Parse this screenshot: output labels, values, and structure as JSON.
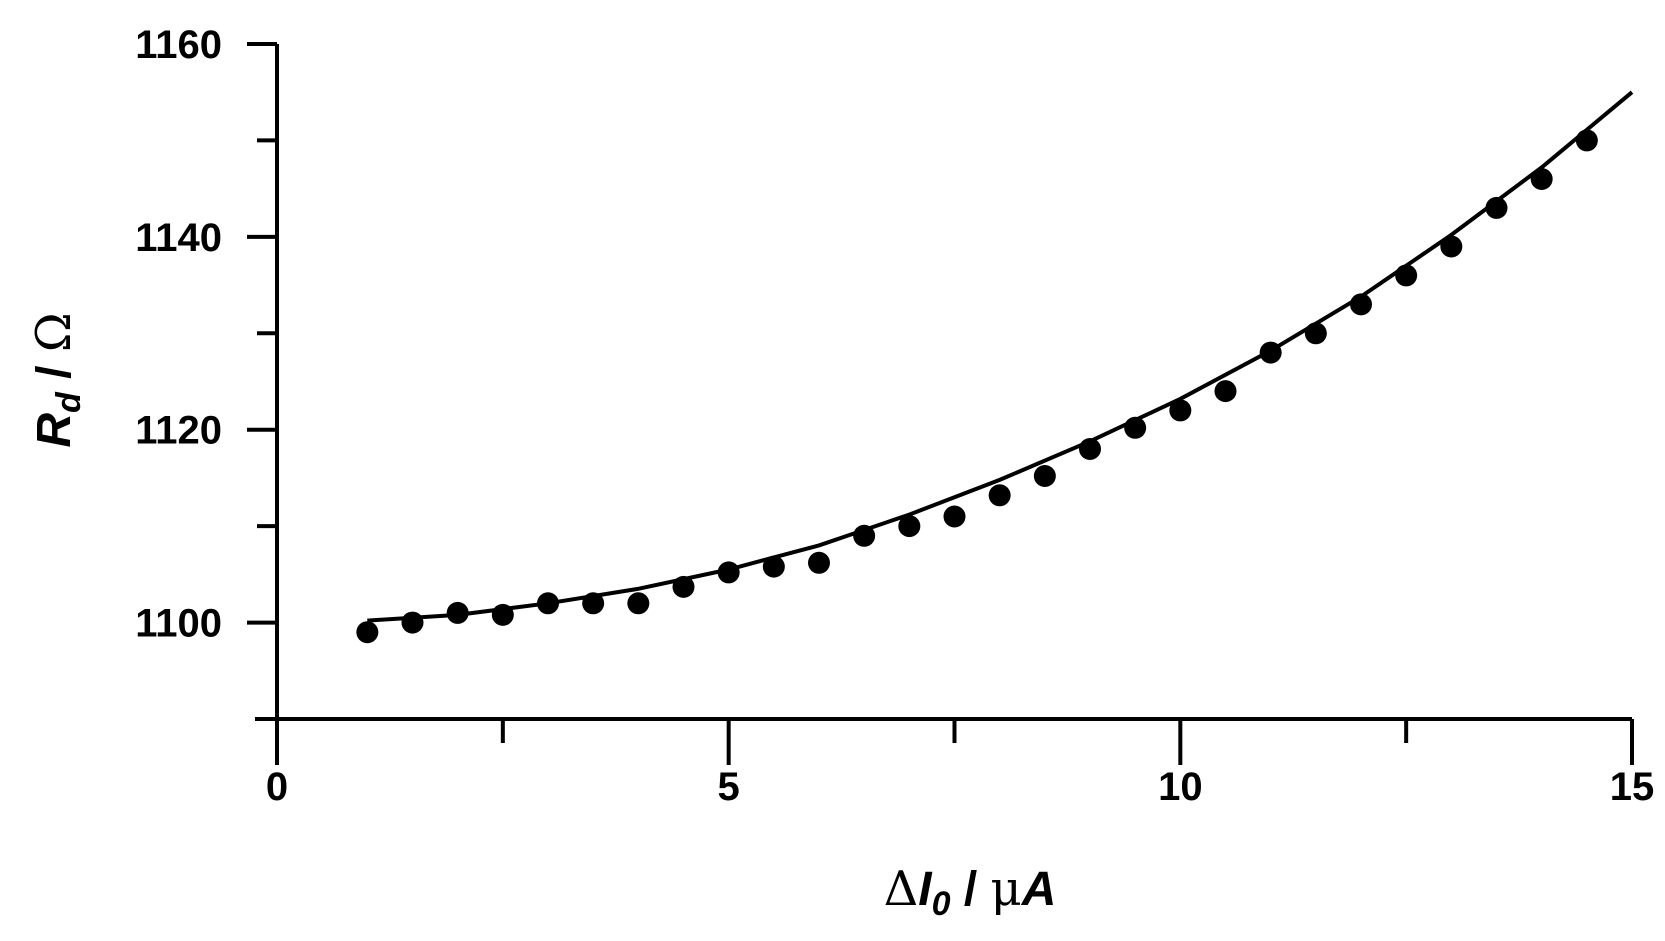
{
  "chart_data": {
    "type": "scatter",
    "x_axis": {
      "label_parts": [
        {
          "text": "Δ",
          "style": "sym"
        },
        {
          "text": "I",
          "style": "it"
        },
        {
          "text": "0",
          "style": "it-sub"
        },
        {
          "text": " / ",
          "style": "normal"
        },
        {
          "text": "μ",
          "style": "sym"
        },
        {
          "text": "A",
          "style": "it"
        }
      ],
      "range": [
        0,
        15
      ],
      "major_ticks": [
        0,
        5,
        10,
        15
      ],
      "minor_ticks": [
        2.5,
        7.5,
        12.5
      ],
      "tick_labels": [
        "0",
        "5",
        "10",
        "15"
      ]
    },
    "y_axis": {
      "label_parts": [
        {
          "text": "R",
          "style": "it"
        },
        {
          "text": "d",
          "style": "it-sub"
        },
        {
          "text": " / ",
          "style": "normal"
        },
        {
          "text": "Ω",
          "style": "sym"
        }
      ],
      "range": [
        1090,
        1160
      ],
      "major_ticks": [
        1100,
        1120,
        1140,
        1160
      ],
      "minor_ticks": [
        1110,
        1130,
        1150
      ],
      "tick_labels": [
        "1100",
        "1120",
        "1140",
        "1160"
      ]
    },
    "series": [
      {
        "kind": "markers",
        "marker": "filled-circle",
        "color": "#000000",
        "x": [
          1,
          1.5,
          2,
          2.5,
          3,
          3.5,
          4,
          4.5,
          5,
          5.5,
          6,
          6.5,
          7,
          7.5,
          8,
          8.5,
          9,
          9.5,
          10,
          10.5,
          11,
          11.5,
          12,
          12.5,
          13,
          13.5,
          14,
          14.5
        ],
        "y": [
          1099,
          1100,
          1101,
          1100.8,
          1102,
          1102,
          1102,
          1103.7,
          1105.2,
          1105.8,
          1106.2,
          1109,
          1110,
          1111,
          1113.2,
          1115.2,
          1118,
          1120.2,
          1122,
          1124,
          1128,
          1130,
          1133,
          1136,
          1139,
          1143,
          1146,
          1150
        ]
      },
      {
        "kind": "line",
        "color": "#000000",
        "x": [
          1,
          2,
          3,
          4,
          5,
          6,
          7,
          8,
          9,
          10,
          11,
          12,
          13,
          14,
          15
        ],
        "y": [
          1100.2,
          1100.8,
          1102,
          1103.5,
          1105.5,
          1108,
          1111.2,
          1114.8,
          1118.8,
          1123.2,
          1128.2,
          1133.8,
          1140.2,
          1147.2,
          1155
        ]
      }
    ],
    "grid": false,
    "legend": "none"
  }
}
